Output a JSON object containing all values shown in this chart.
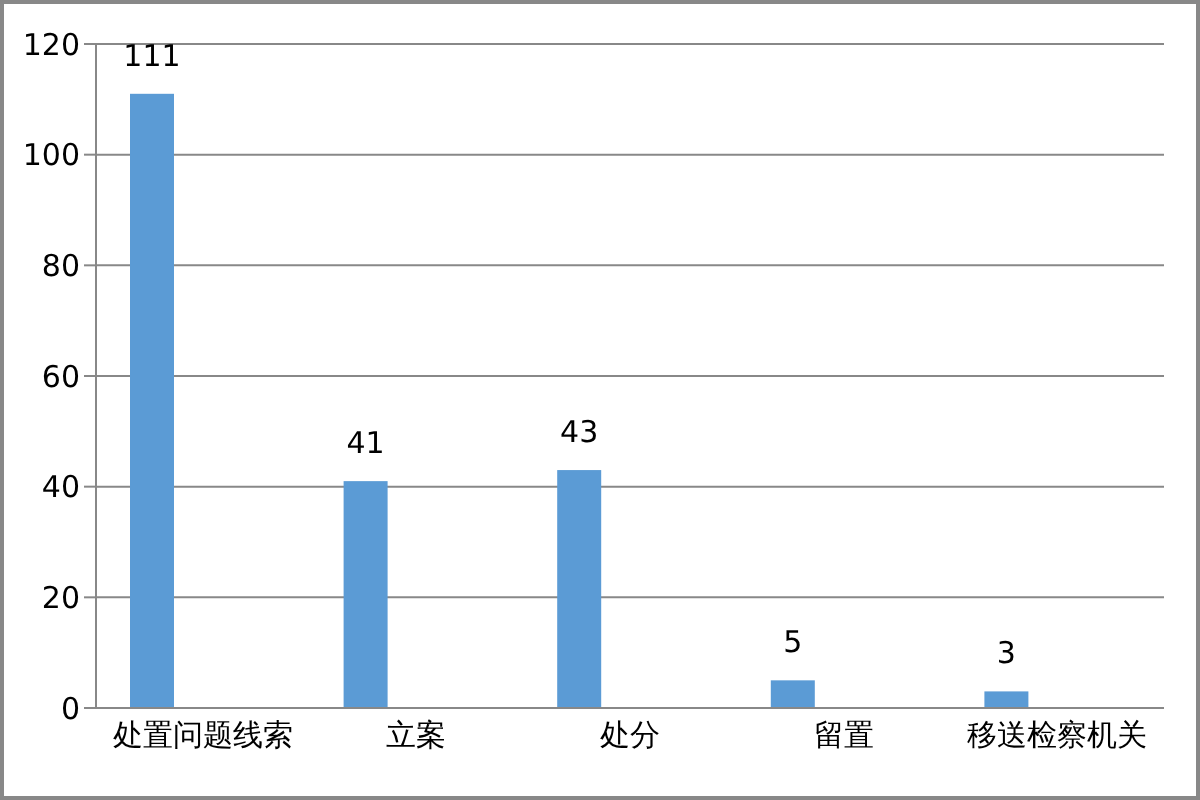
{
  "chart_data": {
    "type": "bar",
    "categories": [
      "处置问题线索",
      "立案",
      "处分",
      "留置",
      "移送检察机关"
    ],
    "values": [
      111,
      41,
      43,
      5,
      3
    ],
    "color": "#5b9bd5",
    "ylim": [
      0,
      120
    ],
    "yticks": [
      0,
      20,
      40,
      60,
      80,
      100,
      120
    ],
    "grid": "y",
    "data_labels": true
  }
}
